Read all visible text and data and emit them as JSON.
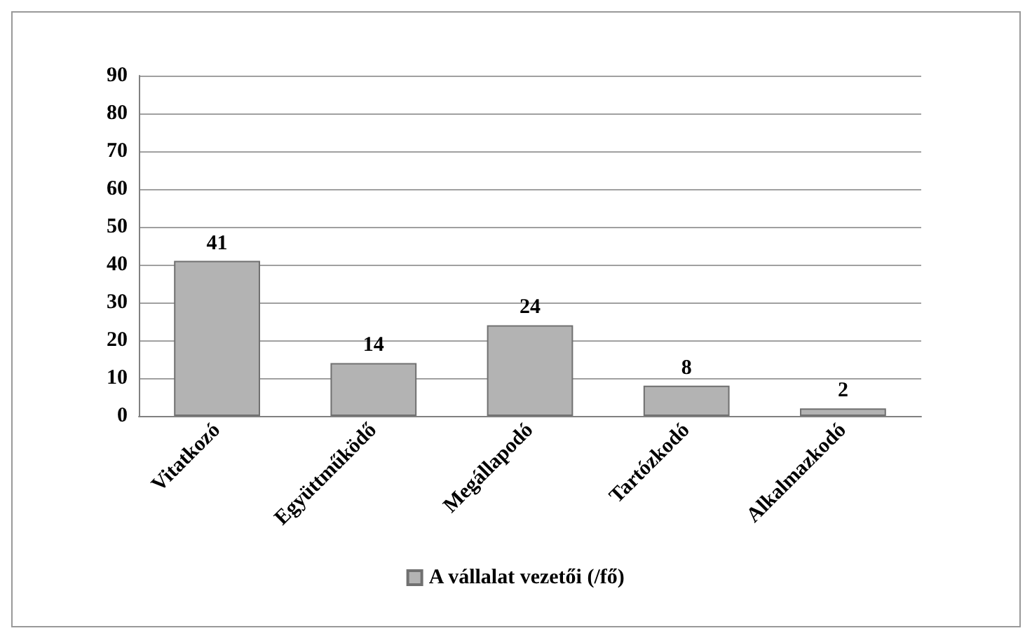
{
  "chart_data": {
    "type": "bar",
    "categories": [
      "Vitatkozó",
      "Együttműködő",
      "Megállapodó",
      "Tartózkodó",
      "Alkalmazkodó"
    ],
    "series": [
      {
        "name": "A vállalat vezetői (/fő)",
        "color": "#b3b3b3",
        "values": [
          41,
          14,
          24,
          8,
          2
        ]
      }
    ],
    "ylim": [
      0,
      90
    ],
    "yticks": [
      0,
      10,
      20,
      30,
      40,
      50,
      60,
      70,
      80,
      90
    ],
    "grid": "y",
    "legend": "bottom",
    "data_labels": true
  }
}
